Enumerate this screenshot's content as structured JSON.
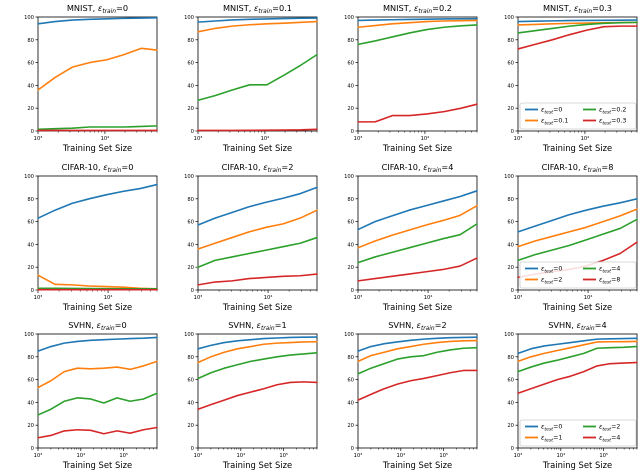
{
  "figure": {
    "xlabel": "Training Set Size",
    "background": "#ffffff",
    "spine_color": "#000000",
    "legend_frame_color": "#cccccc",
    "series_colors": {
      "blue": "#1f77b4",
      "orange": "#ff7f0e",
      "green": "#2ca02c",
      "red": "#d62728"
    }
  },
  "chart_data": [
    {
      "type": "line",
      "title": "MNIST, ε_train=0",
      "xlabel": "Training Set Size",
      "xscale": "log",
      "xlim": [
        1000,
        60000
      ],
      "xtick_exponents": [
        3,
        4
      ],
      "ylim": [
        0,
        100
      ],
      "yticks": [
        0,
        20,
        40,
        60,
        80,
        100
      ],
      "x": [
        1000,
        1800,
        3250,
        5900,
        10700,
        19300,
        34900,
        60000
      ],
      "series": [
        {
          "name": "ε_test=0",
          "color": "#1f77b4",
          "y": [
            94,
            96,
            97.3,
            98,
            98.4,
            98.8,
            99.1,
            99.3
          ]
        },
        {
          "name": "ε_test=0.1",
          "color": "#ff7f0e",
          "y": [
            36,
            47,
            56,
            60,
            62.5,
            67,
            72.5,
            71
          ]
        },
        {
          "name": "ε_test=0.2",
          "color": "#2ca02c",
          "y": [
            1.5,
            2,
            2.5,
            3.5,
            3.5,
            3.5,
            4,
            4.5
          ]
        },
        {
          "name": "ε_test=0.3",
          "color": "#d62728",
          "y": [
            0.5,
            0.5,
            0.5,
            0.5,
            0.5,
            0.5,
            0.5,
            0.5
          ]
        }
      ],
      "legend": null
    },
    {
      "type": "line",
      "title": "MNIST, ε_train=0.1",
      "xlabel": "Training Set Size",
      "xscale": "log",
      "xlim": [
        1000,
        60000
      ],
      "xtick_exponents": [
        3,
        4
      ],
      "ylim": [
        0,
        100
      ],
      "yticks": [
        0,
        20,
        40,
        60,
        80,
        100
      ],
      "x": [
        1000,
        1800,
        3250,
        5900,
        10700,
        19300,
        34900,
        60000
      ],
      "series": [
        {
          "name": "ε_test=0",
          "color": "#1f77b4",
          "y": [
            95.5,
            96.5,
            97.4,
            98,
            98.3,
            98.6,
            98.9,
            99.1
          ]
        },
        {
          "name": "ε_test=0.1",
          "color": "#ff7f0e",
          "y": [
            87,
            90,
            92,
            93.2,
            94,
            94.6,
            95.3,
            96
          ]
        },
        {
          "name": "ε_test=0.2",
          "color": "#2ca02c",
          "y": [
            27,
            31,
            36,
            40.5,
            40.5,
            49,
            58,
            67
          ]
        },
        {
          "name": "ε_test=0.3",
          "color": "#d62728",
          "y": [
            0.5,
            0.5,
            0.5,
            0.6,
            0.7,
            0.8,
            1,
            1.5
          ]
        }
      ],
      "legend": null
    },
    {
      "type": "line",
      "title": "MNIST, ε_train=0.2",
      "xlabel": "Training Set Size",
      "xscale": "log",
      "xlim": [
        1000,
        60000
      ],
      "xtick_exponents": [
        3,
        4
      ],
      "ylim": [
        0,
        100
      ],
      "yticks": [
        0,
        20,
        40,
        60,
        80,
        100
      ],
      "x": [
        1000,
        1800,
        3250,
        5900,
        10700,
        19300,
        34900,
        60000
      ],
      "series": [
        {
          "name": "ε_test=0",
          "color": "#1f77b4",
          "y": [
            97,
            97.3,
            97.6,
            97.9,
            98.1,
            98.3,
            98.4,
            98.5
          ]
        },
        {
          "name": "ε_test=0.1",
          "color": "#ff7f0e",
          "y": [
            91,
            92.5,
            94,
            95,
            96,
            96.5,
            96.8,
            97
          ]
        },
        {
          "name": "ε_test=0.2",
          "color": "#2ca02c",
          "y": [
            76,
            79,
            82.5,
            86,
            89,
            91,
            92.3,
            93
          ]
        },
        {
          "name": "ε_test=0.3",
          "color": "#d62728",
          "y": [
            8,
            8,
            13.5,
            13.5,
            15,
            17,
            20,
            23.5
          ]
        }
      ],
      "legend": null
    },
    {
      "type": "line",
      "title": "MNIST, ε_train=0.3",
      "xlabel": "Training Set Size",
      "xscale": "log",
      "xlim": [
        1000,
        60000
      ],
      "xtick_exponents": [
        3,
        4
      ],
      "ylim": [
        0,
        100
      ],
      "yticks": [
        0,
        20,
        40,
        60,
        80,
        100
      ],
      "x": [
        1000,
        1800,
        3250,
        5900,
        10700,
        19300,
        34900,
        60000
      ],
      "series": [
        {
          "name": "ε_test=0",
          "color": "#1f77b4",
          "y": [
            96,
            96.3,
            96.6,
            96.9,
            97,
            97.1,
            97.2,
            97.3
          ]
        },
        {
          "name": "ε_test=0.1",
          "color": "#ff7f0e",
          "y": [
            93,
            93.5,
            94,
            94.4,
            94.7,
            94.9,
            95.1,
            95.2
          ]
        },
        {
          "name": "ε_test=0.2",
          "color": "#2ca02c",
          "y": [
            86,
            88,
            90,
            92,
            93.5,
            94.5,
            95,
            95.3
          ]
        },
        {
          "name": "ε_test=0.3",
          "color": "#d62728",
          "y": [
            72,
            76,
            80,
            84.5,
            88.5,
            91.5,
            92,
            92
          ]
        }
      ],
      "legend": {
        "columns": 2,
        "entries": [
          "ε_test=0",
          "ε_test=0.1",
          "ε_test=0.2",
          "ε_test=0.3"
        ]
      }
    },
    {
      "type": "line",
      "title": "CIFAR-10, ε_train=0",
      "xlabel": "Training Set Size",
      "xscale": "log",
      "xlim": [
        1000,
        50000
      ],
      "xtick_exponents": [
        3,
        4
      ],
      "ylim": [
        0,
        100
      ],
      "yticks": [
        0,
        20,
        40,
        60,
        80,
        100
      ],
      "x": [
        1000,
        1750,
        3060,
        5360,
        9390,
        16400,
        28700,
        50000
      ],
      "series": [
        {
          "name": "ε_test=0",
          "color": "#1f77b4",
          "y": [
            63,
            70,
            76,
            80,
            83.5,
            86.5,
            89,
            92.5
          ]
        },
        {
          "name": "ε_test=2",
          "color": "#ff7f0e",
          "y": [
            13,
            5,
            4.5,
            3.5,
            3,
            2.5,
            1.5,
            1
          ]
        },
        {
          "name": "ε_test=4",
          "color": "#2ca02c",
          "y": [
            1.5,
            1.5,
            1.4,
            1.3,
            1.2,
            1.1,
            1,
            1
          ]
        },
        {
          "name": "ε_test=8",
          "color": "#d62728",
          "y": [
            0.3,
            0.3,
            0.3,
            0.3,
            0.3,
            0.3,
            0.3,
            0.3
          ]
        }
      ],
      "legend": null
    },
    {
      "type": "line",
      "title": "CIFAR-10, ε_train=2",
      "xlabel": "Training Set Size",
      "xscale": "log",
      "xlim": [
        1000,
        50000
      ],
      "xtick_exponents": [
        3,
        4
      ],
      "ylim": [
        0,
        100
      ],
      "yticks": [
        0,
        20,
        40,
        60,
        80,
        100
      ],
      "x": [
        1000,
        1750,
        3060,
        5360,
        9390,
        16400,
        28700,
        50000
      ],
      "series": [
        {
          "name": "ε_test=0",
          "color": "#1f77b4",
          "y": [
            57,
            63,
            68,
            73,
            77,
            80.5,
            84.5,
            90
          ]
        },
        {
          "name": "ε_test=2",
          "color": "#ff7f0e",
          "y": [
            36,
            41,
            46,
            51,
            55,
            58,
            63,
            70
          ]
        },
        {
          "name": "ε_test=4",
          "color": "#2ca02c",
          "y": [
            20,
            26,
            29,
            32,
            35,
            38,
            41,
            46
          ]
        },
        {
          "name": "ε_test=8",
          "color": "#d62728",
          "y": [
            4.5,
            7,
            8,
            10,
            11,
            12,
            12.5,
            14
          ]
        }
      ],
      "legend": null
    },
    {
      "type": "line",
      "title": "CIFAR-10, ε_train=4",
      "xlabel": "Training Set Size",
      "xscale": "log",
      "xlim": [
        1000,
        50000
      ],
      "xtick_exponents": [
        3,
        4
      ],
      "ylim": [
        0,
        100
      ],
      "yticks": [
        0,
        20,
        40,
        60,
        80,
        100
      ],
      "x": [
        1000,
        1750,
        3060,
        5360,
        9390,
        16400,
        28700,
        50000
      ],
      "series": [
        {
          "name": "ε_test=0",
          "color": "#1f77b4",
          "y": [
            53,
            60,
            65,
            70,
            74,
            78,
            82,
            87
          ]
        },
        {
          "name": "ε_test=2",
          "color": "#ff7f0e",
          "y": [
            37,
            43,
            48,
            52.5,
            57,
            61,
            65.5,
            74
          ]
        },
        {
          "name": "ε_test=4",
          "color": "#2ca02c",
          "y": [
            24,
            29,
            33,
            37,
            41,
            45,
            48.5,
            58
          ]
        },
        {
          "name": "ε_test=8",
          "color": "#d62728",
          "y": [
            8,
            10,
            12,
            14,
            16,
            18,
            21,
            28
          ]
        }
      ],
      "legend": null
    },
    {
      "type": "line",
      "title": "CIFAR-10, ε_train=8",
      "xlabel": "Training Set Size",
      "xscale": "log",
      "xlim": [
        1000,
        50000
      ],
      "xtick_exponents": [
        3,
        4
      ],
      "ylim": [
        0,
        100
      ],
      "yticks": [
        0,
        20,
        40,
        60,
        80,
        100
      ],
      "x": [
        1000,
        1750,
        3060,
        5360,
        9390,
        16400,
        28700,
        50000
      ],
      "series": [
        {
          "name": "ε_test=0",
          "color": "#1f77b4",
          "y": [
            51,
            56,
            61,
            66,
            70,
            73.5,
            76.5,
            80
          ]
        },
        {
          "name": "ε_test=2",
          "color": "#ff7f0e",
          "y": [
            38,
            43,
            47,
            51,
            55,
            60,
            65,
            71
          ]
        },
        {
          "name": "ε_test=4",
          "color": "#2ca02c",
          "y": [
            26,
            31,
            35,
            39,
            44,
            49,
            54,
            62
          ]
        },
        {
          "name": "ε_test=8",
          "color": "#d62728",
          "y": [
            11,
            14,
            16,
            18,
            21,
            26,
            32,
            42
          ]
        }
      ],
      "legend": {
        "columns": 2,
        "entries": [
          "ε_test=0",
          "ε_test=2",
          "ε_test=4",
          "ε_test=8"
        ]
      }
    },
    {
      "type": "line",
      "title": "SVHN, ε_train=0",
      "xlabel": "Training Set Size",
      "xscale": "log",
      "xlim": [
        1000,
        600000
      ],
      "xtick_exponents": [
        3,
        4,
        5
      ],
      "ylim": [
        0,
        100
      ],
      "yticks": [
        0,
        20,
        40,
        60,
        80,
        100
      ],
      "x": [
        1000,
        2000,
        4100,
        8300,
        16900,
        34400,
        70000,
        142000,
        290000,
        600000
      ],
      "series": [
        {
          "name": "ε_test=0",
          "color": "#1f77b4",
          "y": [
            85,
            89,
            92,
            93.5,
            94.5,
            95,
            95.5,
            96,
            96.3,
            97
          ]
        },
        {
          "name": "ε_test=1",
          "color": "#ff7f0e",
          "y": [
            53,
            59,
            67,
            70,
            69.5,
            70,
            71,
            69,
            72,
            76
          ]
        },
        {
          "name": "ε_test=2",
          "color": "#2ca02c",
          "y": [
            29,
            34,
            41,
            44,
            43,
            39.5,
            44,
            41,
            43,
            48
          ]
        },
        {
          "name": "ε_test=4",
          "color": "#d62728",
          "y": [
            9,
            11,
            15,
            16,
            15.5,
            12.5,
            15,
            13,
            16,
            18
          ]
        }
      ],
      "legend": null
    },
    {
      "type": "line",
      "title": "SVHN, ε_train=1",
      "xlabel": "Training Set Size",
      "xscale": "log",
      "xlim": [
        1000,
        600000
      ],
      "xtick_exponents": [
        3,
        4,
        5
      ],
      "ylim": [
        0,
        100
      ],
      "yticks": [
        0,
        20,
        40,
        60,
        80,
        100
      ],
      "x": [
        1000,
        2000,
        4100,
        8300,
        16900,
        34400,
        70000,
        142000,
        290000,
        600000
      ],
      "series": [
        {
          "name": "ε_test=0",
          "color": "#1f77b4",
          "y": [
            87,
            90,
            92.5,
            94,
            95,
            96,
            96.5,
            97,
            97.2,
            97.3
          ]
        },
        {
          "name": "ε_test=1",
          "color": "#ff7f0e",
          "y": [
            75,
            80,
            84,
            87,
            89,
            91,
            92,
            92.5,
            93,
            93.2
          ]
        },
        {
          "name": "ε_test=2",
          "color": "#2ca02c",
          "y": [
            61,
            66,
            70,
            73,
            76,
            78,
            80,
            81.5,
            82.5,
            83.5
          ]
        },
        {
          "name": "ε_test=4",
          "color": "#d62728",
          "y": [
            34,
            38,
            42,
            46,
            49,
            52,
            55.5,
            57.5,
            58,
            57.5
          ]
        }
      ],
      "legend": null
    },
    {
      "type": "line",
      "title": "SVHN, ε_train=2",
      "xlabel": "Training Set Size",
      "xscale": "log",
      "xlim": [
        1000,
        600000
      ],
      "xtick_exponents": [
        3,
        4,
        5
      ],
      "ylim": [
        0,
        100
      ],
      "yticks": [
        0,
        20,
        40,
        60,
        80,
        100
      ],
      "x": [
        1000,
        2000,
        4100,
        8300,
        16900,
        34400,
        70000,
        142000,
        290000,
        600000
      ],
      "series": [
        {
          "name": "ε_test=0",
          "color": "#1f77b4",
          "y": [
            85,
            89,
            91.5,
            93,
            94.5,
            95.5,
            96.2,
            96.8,
            97,
            97.2
          ]
        },
        {
          "name": "ε_test=1",
          "color": "#ff7f0e",
          "y": [
            76,
            81,
            84,
            87,
            89,
            91,
            92.5,
            93.5,
            94,
            94.2
          ]
        },
        {
          "name": "ε_test=2",
          "color": "#2ca02c",
          "y": [
            65,
            70,
            74,
            78,
            80,
            81,
            84,
            86,
            87.5,
            88
          ]
        },
        {
          "name": "ε_test=4",
          "color": "#d62728",
          "y": [
            42,
            47,
            52,
            56,
            59,
            61,
            63.5,
            66,
            68,
            68
          ]
        }
      ],
      "legend": null
    },
    {
      "type": "line",
      "title": "SVHN, ε_train=4",
      "xlabel": "Training Set Size",
      "xscale": "log",
      "xlim": [
        1000,
        600000
      ],
      "xtick_exponents": [
        3,
        4,
        5
      ],
      "ylim": [
        0,
        100
      ],
      "yticks": [
        0,
        20,
        40,
        60,
        80,
        100
      ],
      "x": [
        1000,
        2000,
        4100,
        8300,
        16900,
        34400,
        70000,
        142000,
        290000,
        600000
      ],
      "series": [
        {
          "name": "ε_test=0",
          "color": "#1f77b4",
          "y": [
            83,
            87,
            89.5,
            91,
            92.5,
            94,
            95.5,
            95.8,
            96,
            96.2
          ]
        },
        {
          "name": "ε_test=1",
          "color": "#ff7f0e",
          "y": [
            76,
            80,
            83,
            85.5,
            88,
            90.5,
            93,
            93.2,
            93.3,
            93.5
          ]
        },
        {
          "name": "ε_test=2",
          "color": "#2ca02c",
          "y": [
            67,
            71,
            74.5,
            77,
            80,
            83,
            87.5,
            88,
            88.3,
            89
          ]
        },
        {
          "name": "ε_test=4",
          "color": "#d62728",
          "y": [
            48,
            52,
            56,
            60,
            63,
            67,
            72,
            74,
            74.5,
            75
          ]
        }
      ],
      "legend": {
        "columns": 2,
        "entries": [
          "ε_test=0",
          "ε_test=1",
          "ε_test=2",
          "ε_test=4"
        ]
      }
    }
  ]
}
